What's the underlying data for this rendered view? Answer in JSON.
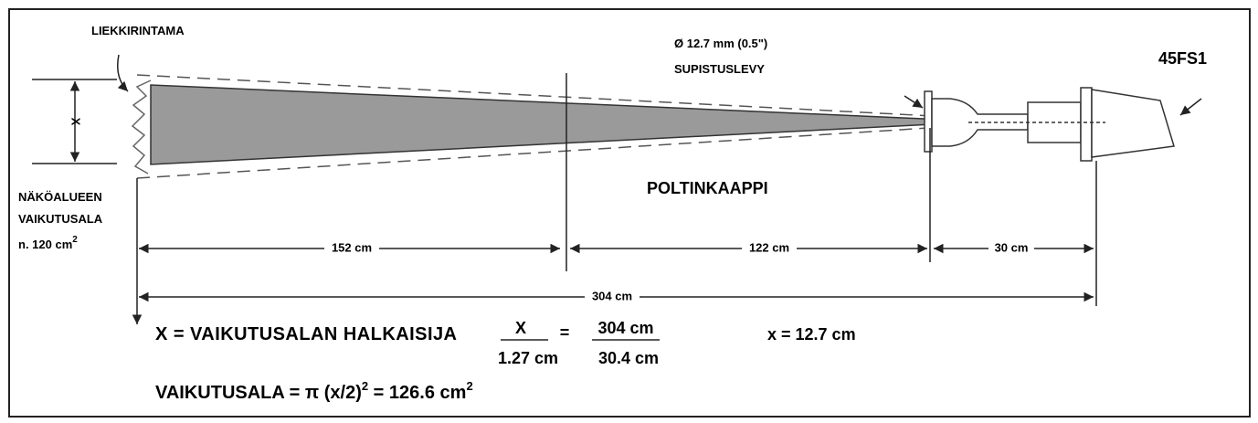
{
  "labels": {
    "flame_front": "LIEKKIRINTAMA",
    "orifice": "Ø 12.7 mm (0.5\")",
    "orifice_plate": "SUPISTUSLEVY",
    "detector": "45FS1",
    "x_mark": "X",
    "view_area": [
      "NÄKÖALUEEN",
      "VAIKUTUSALA"
    ],
    "view_area_value": "n. 120 cm",
    "view_area_exp": "2",
    "cabinet": "POLTINKAAPPI"
  },
  "dimensions": [
    "152 cm",
    "122 cm",
    "30 cm",
    "304 cm"
  ],
  "formula": {
    "definition": "X = VAIKUTUSALAN HALKAISIJA",
    "left_num": "X",
    "left_den": "1.27 cm",
    "equals": "=",
    "right_num": "304 cm",
    "right_den": "30.4 cm",
    "result": "x = 12.7 cm",
    "area_a": "VAIKUTUSALA = π (x/2)",
    "area_exp1": "2",
    "area_b": " = 126.6 cm",
    "area_exp2": "2"
  }
}
